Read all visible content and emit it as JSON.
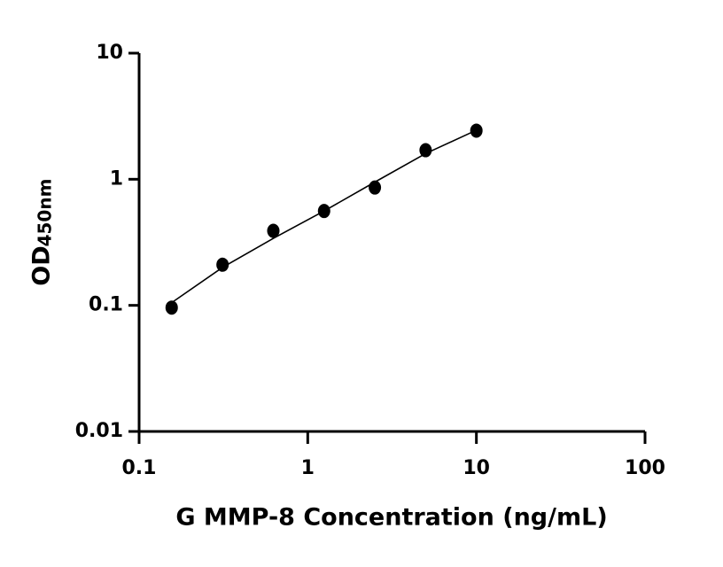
{
  "chart_data": {
    "type": "scatter",
    "x_label": "G MMP-8 Concentration (ng/mL)",
    "y_label": "OD",
    "y_label_sub": "450nm",
    "x": [
      0.156,
      0.3125,
      0.625,
      1.25,
      2.5,
      5,
      10
    ],
    "values": [
      0.096,
      0.21,
      0.39,
      0.56,
      0.86,
      1.7,
      2.43
    ],
    "color": "#000000",
    "curve": {
      "x": [
        0.156,
        0.3125,
        0.625,
        1.25,
        2.5,
        5,
        10
      ],
      "values": [
        0.105,
        0.2,
        0.34,
        0.56,
        0.95,
        1.6,
        2.45
      ]
    },
    "xlim": [
      0.1,
      100
    ],
    "xticks": [
      0.1,
      1,
      10,
      100
    ],
    "ylim": [
      0.01,
      10
    ],
    "yticks": [
      0.01,
      0.1,
      1,
      10
    ],
    "xscale": "log",
    "yscale": "log",
    "grid": false
  }
}
